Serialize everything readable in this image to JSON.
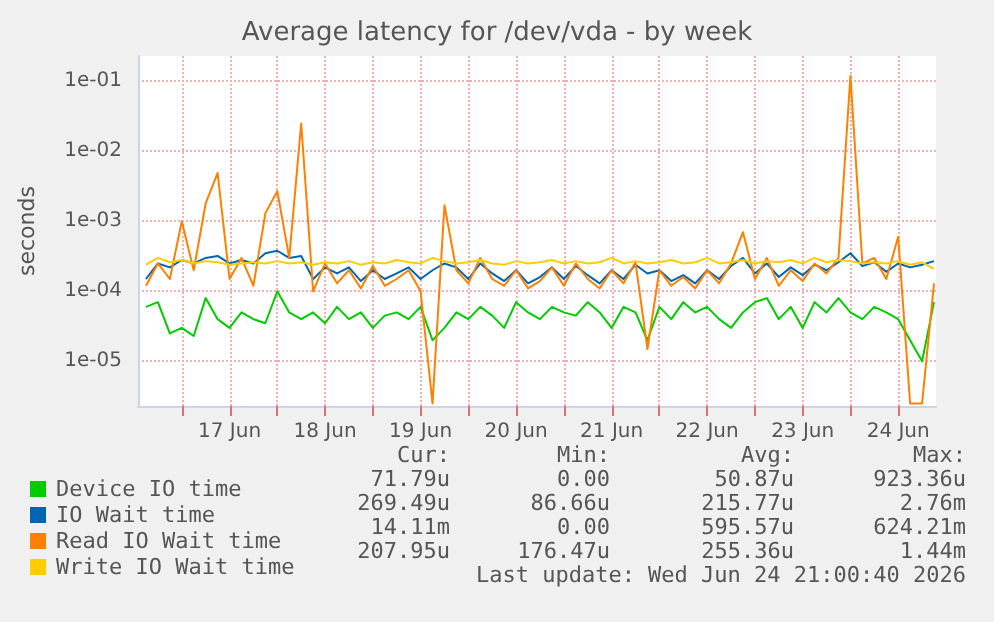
{
  "chart_data": {
    "type": "line",
    "title": "Average latency for /dev/vda - by week",
    "ylabel": "seconds",
    "log": "y",
    "grid": true,
    "legend": "bottom",
    "marker": "none",
    "line_style": "solid",
    "xlim": [
      "2026-06-16T13:00",
      "2026-06-24T21:30"
    ],
    "xticks": [
      {
        "value": "2026-06-17T00:00",
        "label": null
      },
      {
        "value": "2026-06-17T12:00",
        "label": "17 Jun"
      },
      {
        "value": "2026-06-18T00:00",
        "label": null
      },
      {
        "value": "2026-06-18T12:00",
        "label": "18 Jun"
      },
      {
        "value": "2026-06-19T00:00",
        "label": null
      },
      {
        "value": "2026-06-19T12:00",
        "label": "19 Jun"
      },
      {
        "value": "2026-06-20T00:00",
        "label": null
      },
      {
        "value": "2026-06-20T12:00",
        "label": "20 Jun"
      },
      {
        "value": "2026-06-21T00:00",
        "label": null
      },
      {
        "value": "2026-06-21T12:00",
        "label": "21 Jun"
      },
      {
        "value": "2026-06-22T00:00",
        "label": null
      },
      {
        "value": "2026-06-22T12:00",
        "label": "22 Jun"
      },
      {
        "value": "2026-06-23T00:00",
        "label": null
      },
      {
        "value": "2026-06-23T12:00",
        "label": "23 Jun"
      },
      {
        "value": "2026-06-24T00:00",
        "label": null
      },
      {
        "value": "2026-06-24T12:00",
        "label": "24 Jun"
      }
    ],
    "ylim": [
      2.3e-06,
      0.23
    ],
    "yticks": [
      {
        "value": 1e-05,
        "label": "1e-05"
      },
      {
        "value": 0.0001,
        "label": "1e-04"
      },
      {
        "value": 0.001,
        "label": "1e-03"
      },
      {
        "value": 0.01,
        "label": "1e-02"
      },
      {
        "value": 0.1,
        "label": "1e-01"
      }
    ],
    "x": [
      "2026-06-16T15:00",
      "2026-06-16T18:00",
      "2026-06-16T21:00",
      "2026-06-17T00:00",
      "2026-06-17T03:00",
      "2026-06-17T06:00",
      "2026-06-17T09:00",
      "2026-06-17T12:00",
      "2026-06-17T15:00",
      "2026-06-17T18:00",
      "2026-06-17T21:00",
      "2026-06-18T00:00",
      "2026-06-18T03:00",
      "2026-06-18T06:00",
      "2026-06-18T09:00",
      "2026-06-18T12:00",
      "2026-06-18T15:00",
      "2026-06-18T18:00",
      "2026-06-18T21:00",
      "2026-06-19T00:00",
      "2026-06-19T03:00",
      "2026-06-19T06:00",
      "2026-06-19T09:00",
      "2026-06-19T12:00",
      "2026-06-19T15:00",
      "2026-06-19T18:00",
      "2026-06-19T21:00",
      "2026-06-20T00:00",
      "2026-06-20T03:00",
      "2026-06-20T06:00",
      "2026-06-20T09:00",
      "2026-06-20T12:00",
      "2026-06-20T15:00",
      "2026-06-20T18:00",
      "2026-06-20T21:00",
      "2026-06-21T00:00",
      "2026-06-21T03:00",
      "2026-06-21T06:00",
      "2026-06-21T09:00",
      "2026-06-21T12:00",
      "2026-06-21T15:00",
      "2026-06-21T18:00",
      "2026-06-21T21:00",
      "2026-06-22T00:00",
      "2026-06-22T03:00",
      "2026-06-22T06:00",
      "2026-06-22T09:00",
      "2026-06-22T12:00",
      "2026-06-22T15:00",
      "2026-06-22T18:00",
      "2026-06-22T21:00",
      "2026-06-23T00:00",
      "2026-06-23T03:00",
      "2026-06-23T06:00",
      "2026-06-23T09:00",
      "2026-06-23T12:00",
      "2026-06-23T15:00",
      "2026-06-23T18:00",
      "2026-06-23T21:00",
      "2026-06-24T00:00",
      "2026-06-24T03:00",
      "2026-06-24T06:00",
      "2026-06-24T09:00",
      "2026-06-24T12:00",
      "2026-06-24T15:00",
      "2026-06-24T18:00",
      "2026-06-24T21:00"
    ],
    "series": [
      {
        "name": "Device IO time",
        "color": "#00cc00",
        "values": [
          6e-05,
          7e-05,
          2.5e-05,
          3e-05,
          2.3e-05,
          8e-05,
          4e-05,
          3e-05,
          5e-05,
          4e-05,
          3.5e-05,
          0.0001,
          5e-05,
          4e-05,
          5e-05,
          3.5e-05,
          6e-05,
          4e-05,
          5e-05,
          3e-05,
          4.5e-05,
          5e-05,
          4e-05,
          6e-05,
          2e-05,
          3e-05,
          5e-05,
          4e-05,
          6e-05,
          4.5e-05,
          3e-05,
          7e-05,
          5e-05,
          4e-05,
          6e-05,
          5e-05,
          4.5e-05,
          7e-05,
          5e-05,
          3e-05,
          6e-05,
          5e-05,
          2e-05,
          6e-05,
          4e-05,
          7e-05,
          5e-05,
          6e-05,
          4e-05,
          3e-05,
          5e-05,
          7e-05,
          8e-05,
          4e-05,
          6e-05,
          3e-05,
          7e-05,
          5e-05,
          8e-05,
          5e-05,
          4e-05,
          6e-05,
          5e-05,
          4e-05,
          2e-05,
          1e-05,
          7e-05
        ]
      },
      {
        "name": "IO Wait time",
        "color": "#0066b3",
        "values": [
          0.00015,
          0.00025,
          0.00022,
          0.00028,
          0.00025,
          0.0003,
          0.00032,
          0.00025,
          0.00028,
          0.00025,
          0.00035,
          0.00038,
          0.0003,
          0.00032,
          0.00015,
          0.00022,
          0.00018,
          0.00022,
          0.00014,
          0.0002,
          0.00015,
          0.00018,
          0.00022,
          0.00015,
          0.0002,
          0.00025,
          0.00022,
          0.00015,
          0.00025,
          0.00018,
          0.00014,
          0.0002,
          0.00013,
          0.00016,
          0.00022,
          0.00015,
          0.00023,
          0.00017,
          0.00013,
          0.0002,
          0.00015,
          0.00024,
          0.00018,
          0.0002,
          0.00014,
          0.00017,
          0.00013,
          0.0002,
          0.00015,
          0.00023,
          0.0003,
          0.00018,
          0.00025,
          0.00016,
          0.00022,
          0.00017,
          0.00024,
          0.0002,
          0.00026,
          0.00035,
          0.00023,
          0.00026,
          0.00019,
          0.00025,
          0.00022,
          0.00024,
          0.00027
        ]
      },
      {
        "name": "Read IO Wait time",
        "color": "#ff8000",
        "values": [
          0.00012,
          0.00025,
          0.00015,
          0.001,
          0.0002,
          0.0018,
          0.0049,
          0.00015,
          0.0003,
          0.00012,
          0.0013,
          0.0027,
          0.0003,
          0.025,
          0.0001,
          0.00025,
          0.00013,
          0.0002,
          0.00011,
          0.00023,
          0.00012,
          0.00015,
          0.0002,
          0.0001,
          2.5e-06,
          0.0017,
          0.0002,
          0.00013,
          0.0003,
          0.00015,
          0.00012,
          0.0002,
          0.00011,
          0.00014,
          0.00022,
          0.00012,
          0.00025,
          0.00015,
          0.00011,
          0.0002,
          0.00013,
          0.00026,
          1.5e-05,
          0.0002,
          0.00012,
          0.00016,
          0.00011,
          0.0002,
          0.00013,
          0.00025,
          0.0007,
          0.00015,
          0.0003,
          0.00012,
          0.0002,
          0.00014,
          0.00025,
          0.00018,
          0.0003,
          0.12,
          0.00025,
          0.0003,
          0.00015,
          0.0006,
          2.5e-06,
          2.5e-06,
          0.00013
        ]
      },
      {
        "name": "Write IO Wait time",
        "color": "#ffcc00",
        "values": [
          0.00024,
          0.0003,
          0.00026,
          0.00028,
          0.00025,
          0.00027,
          0.00026,
          0.00024,
          0.00025,
          0.00026,
          0.00025,
          0.00027,
          0.00025,
          0.00026,
          0.00024,
          0.00026,
          0.00025,
          0.00027,
          0.00024,
          0.00026,
          0.00025,
          0.00028,
          0.00026,
          0.00025,
          0.0003,
          0.00027,
          0.00025,
          0.00026,
          0.00028,
          0.00025,
          0.00024,
          0.00027,
          0.00025,
          0.00026,
          0.00028,
          0.00025,
          0.00027,
          0.00025,
          0.00026,
          0.0003,
          0.00025,
          0.00027,
          0.00025,
          0.00026,
          0.00028,
          0.00025,
          0.00026,
          0.0003,
          0.00025,
          0.00026,
          0.00028,
          0.00025,
          0.00027,
          0.00026,
          0.00028,
          0.00025,
          0.0003,
          0.00026,
          0.00028,
          0.00027,
          0.00025,
          0.00026,
          0.00025,
          0.00027,
          0.00024,
          0.00026,
          0.00021
        ]
      }
    ],
    "annotations": [
      "Cur:",
      "Min:",
      "Avg:",
      "Max:",
      "71.79u",
      "0.00",
      "50.87u",
      "923.36u",
      "269.49u",
      "86.66u",
      "215.77u",
      "2.76m",
      "14.11m",
      "0.00",
      "595.57u",
      "624.21m",
      "207.95u",
      "176.47u",
      "255.36u",
      "1.44m",
      "Last update: Wed Jun 24 21:00:40 2026"
    ]
  }
}
